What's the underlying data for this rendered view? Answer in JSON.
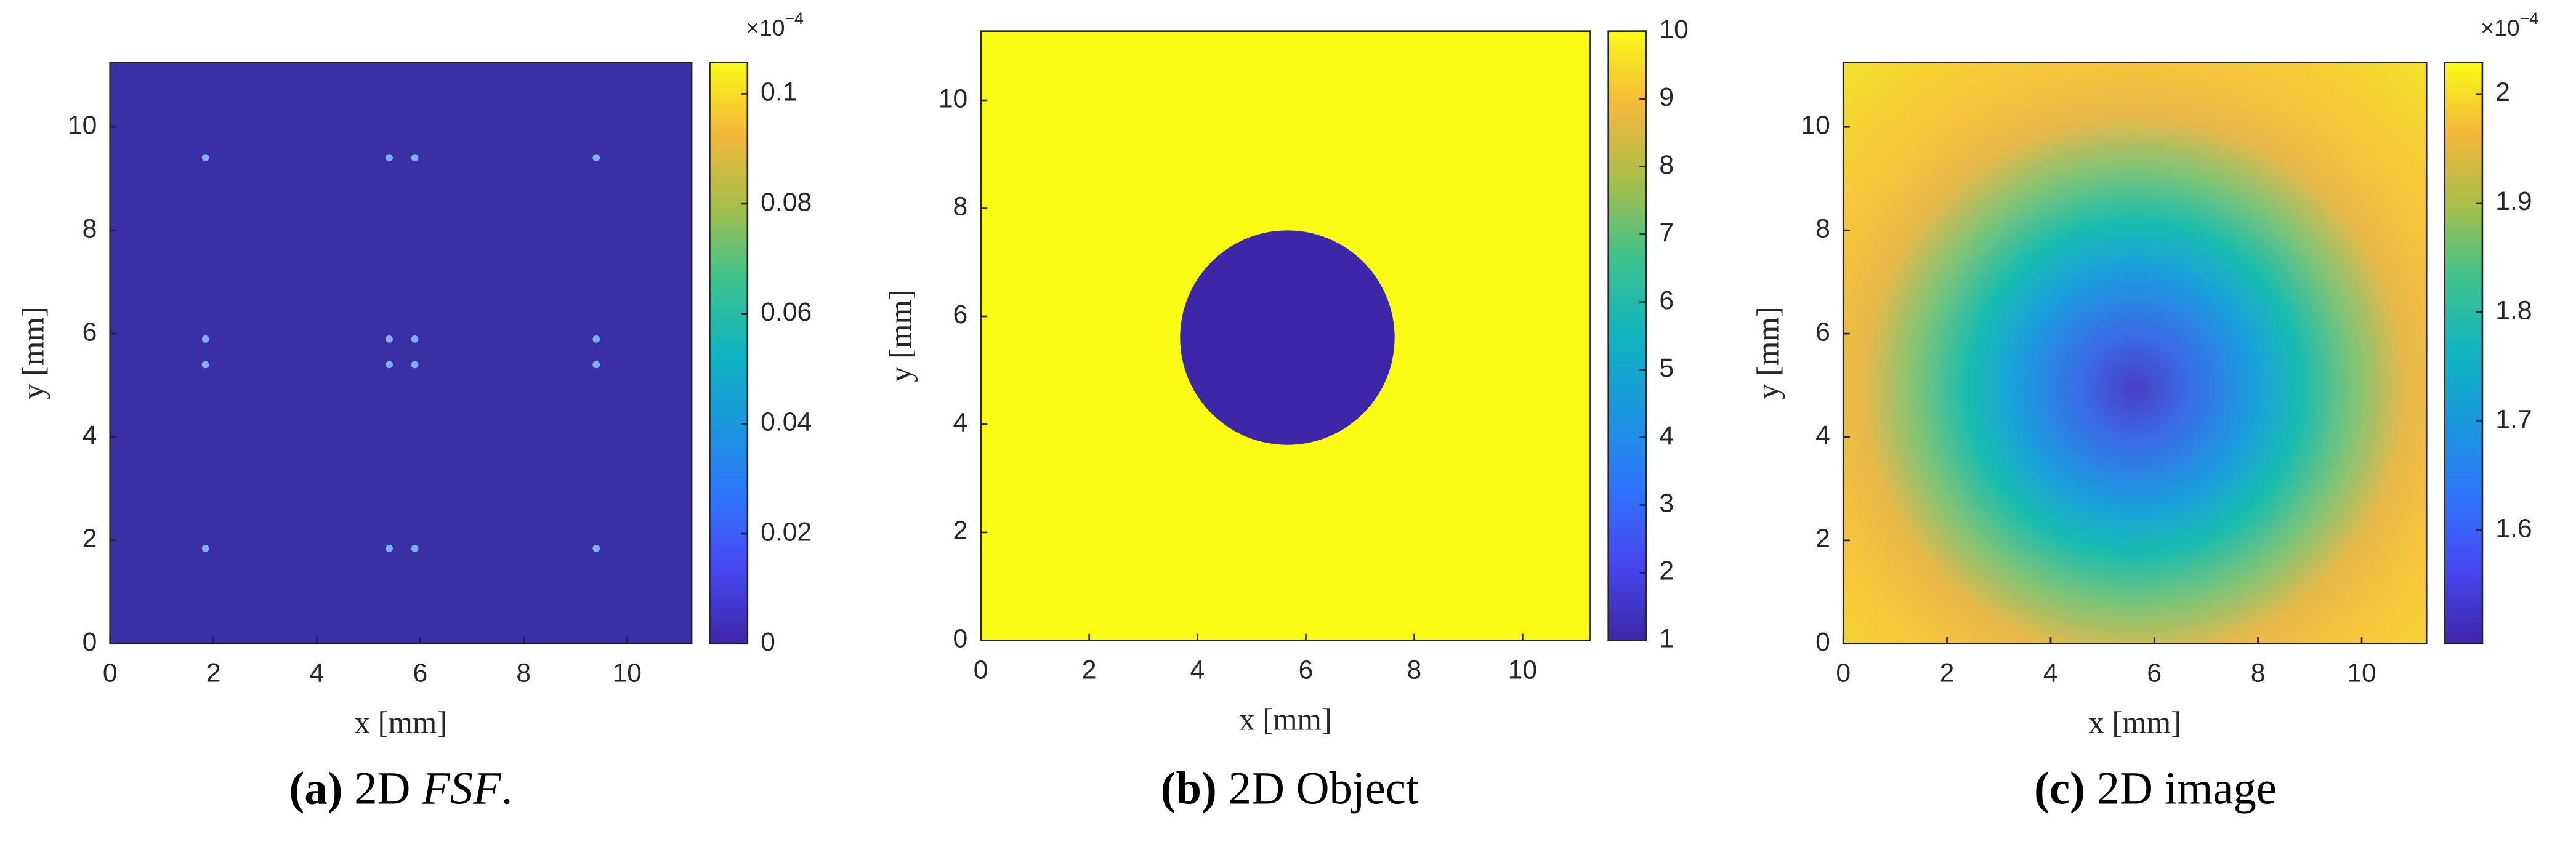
{
  "chart_data": [
    {
      "type": "heatmap",
      "xlabel": "x [mm]",
      "ylabel": "y [mm]",
      "xlim": [
        0,
        11.25
      ],
      "ylim": [
        0,
        11.25
      ],
      "xticks": [
        0,
        2,
        4,
        6,
        8,
        10
      ],
      "yticks": [
        0,
        2,
        4,
        6,
        8,
        10
      ],
      "clim": [
        0,
        0.1057
      ],
      "cticks": [
        0,
        0.02,
        0.04,
        0.06,
        0.08,
        0.1
      ],
      "colorbar_multiplier": "×10",
      "colorbar_exponent": "−4",
      "caption_label": "(a)",
      "caption": "2D",
      "caption_italic": "FSF",
      "caption_end": "."
    },
    {
      "type": "heatmap",
      "xlabel": "x [mm]",
      "ylabel": "y [mm]",
      "xlim": [
        0,
        11.25
      ],
      "ylim": [
        0,
        11.28
      ],
      "xticks": [
        0,
        2,
        4,
        6,
        8,
        10
      ],
      "yticks": [
        0,
        2,
        4,
        6,
        8,
        10
      ],
      "clim": [
        1,
        10
      ],
      "cticks": [
        1,
        2,
        3,
        4,
        5,
        6,
        7,
        8,
        9,
        10
      ],
      "caption_label": "(b)",
      "caption": "2D Object"
    },
    {
      "type": "heatmap",
      "xlabel": "x [mm]",
      "ylabel": "y [mm]",
      "xlim": [
        0,
        11.25
      ],
      "ylim": [
        0,
        11.25
      ],
      "xticks": [
        0,
        2,
        4,
        6,
        8,
        10
      ],
      "yticks": [
        0,
        2,
        4,
        6,
        8,
        10
      ],
      "clim": [
        1.496,
        2.029
      ],
      "cticks": [
        1.6,
        1.7,
        1.8,
        1.9,
        2
      ],
      "colorbar_multiplier": "×10",
      "colorbar_exponent": "−4",
      "caption_label": "(c)",
      "caption": "2D image"
    }
  ]
}
